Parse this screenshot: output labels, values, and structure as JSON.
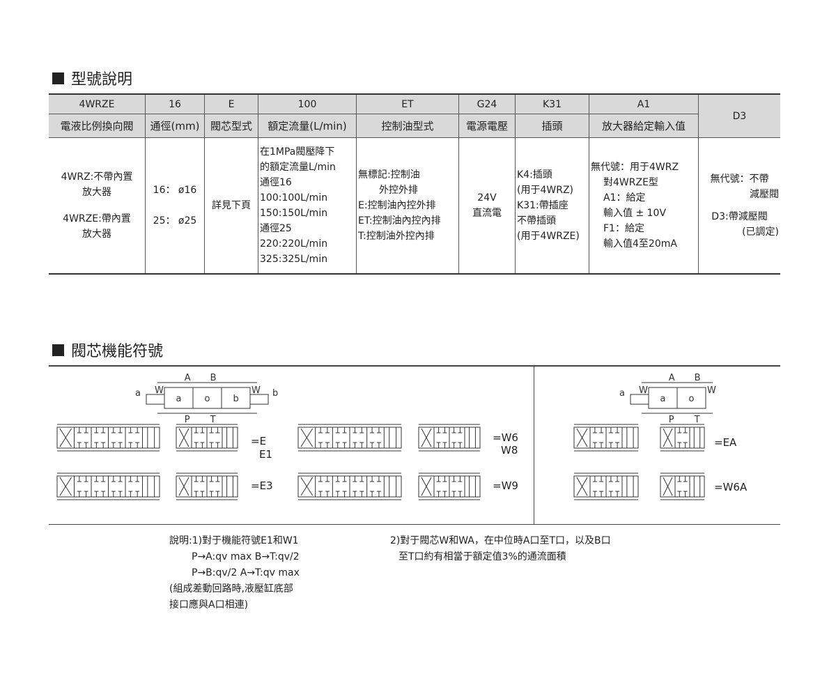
{
  "section1_title": "型號說明",
  "section2_title": "閥芯機能符號",
  "table": {
    "codes": [
      "4WRZE",
      "16",
      "E",
      "100",
      "ET",
      "G24",
      "K31",
      "A1",
      "D3"
    ],
    "headers": [
      "電液比例換向閥",
      "通徑(mm)",
      "閥芯型式",
      "額定流量(L/min)",
      "控制油型式",
      "電源電壓",
      "插頭",
      "放大器給定輸入值"
    ],
    "col1": [
      "4WRZ:不帶內置",
      "放大器",
      "4WRZE:帶內置",
      "放大器"
    ],
    "col2": [
      "16： ø16",
      "25： ø25"
    ],
    "col3": "詳見下頁",
    "col4": [
      "在1MPa閥壓降下",
      "的額定流量L/min",
      "通徑16",
      "100:100L/min",
      "150:150L/min",
      "通徑25",
      "220:220L/min",
      "325:325L/min"
    ],
    "col5": [
      "無標記:控制油",
      "外控外排",
      "E:控制油內控外排",
      "ET:控制油內控內排",
      "T:控制油外控內排"
    ],
    "col6": [
      "24V",
      "直流電"
    ],
    "col7": [
      "K4:插頭",
      "(用于4WRZ)",
      "K31:帶插座",
      "不帶插頭",
      "(用于4WRZE)"
    ],
    "col8": [
      "無代號：用于4WRZ",
      "對4WRZE型",
      "A1：給定",
      "輸入值 ± 10V",
      "F1：給定",
      "輸入值4至20mA"
    ],
    "col9": [
      "無代號：不帶",
      "減壓閥",
      "D3:帶減壓閥",
      "(已調定)"
    ]
  },
  "symbols": {
    "key_left": {
      "ports": [
        "A",
        "B",
        "P",
        "T"
      ],
      "positions": [
        "a",
        "o",
        "b"
      ],
      "springs": [
        "W",
        "W"
      ],
      "solenoids": [
        "a",
        "b"
      ]
    },
    "key_right": {
      "ports": [
        "A",
        "B",
        "P",
        "T"
      ],
      "positions": [
        "a",
        "o"
      ],
      "springs": [
        "W",
        "W"
      ],
      "solenoids": [
        "a"
      ]
    },
    "labels": [
      "=E",
      "E1",
      "=E3",
      "=W6",
      "W8",
      "=W9",
      "=EA",
      "=W6A"
    ]
  },
  "notes": {
    "left": [
      "說明:1)對于機能符號E1和W1",
      "P→A:qv max  B→T:qv/2",
      "P→B:qv/2  A→T:qv max",
      "(組成差動回路時,液壓缸底部",
      "接口應與A口相連)"
    ],
    "right": [
      "2)對于閥芯W和WA，在中位時A口至T口，以及B口",
      "至T口約有相當于額定值3%的通流面積"
    ]
  }
}
